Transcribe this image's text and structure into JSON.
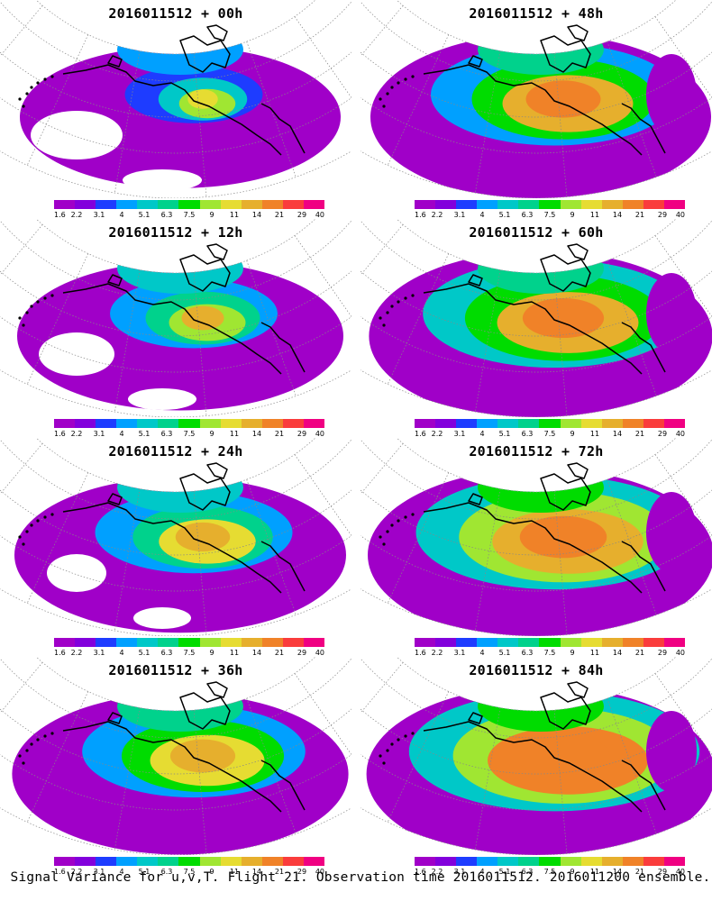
{
  "panels": [
    {
      "title": "2016011512 + 00h",
      "lead_hours": 0,
      "intensity": 0.15
    },
    {
      "title": "2016011512 + 48h",
      "lead_hours": 48,
      "intensity": 0.7
    },
    {
      "title": "2016011512 + 12h",
      "lead_hours": 12,
      "intensity": 0.3
    },
    {
      "title": "2016011512 + 60h",
      "lead_hours": 60,
      "intensity": 0.78
    },
    {
      "title": "2016011512 + 24h",
      "lead_hours": 24,
      "intensity": 0.45
    },
    {
      "title": "2016011512 + 72h",
      "lead_hours": 72,
      "intensity": 0.85
    },
    {
      "title": "2016011512 + 36h",
      "lead_hours": 36,
      "intensity": 0.58
    },
    {
      "title": "2016011512 + 84h",
      "lead_hours": 84,
      "intensity": 0.92
    }
  ],
  "colorbar": {
    "labels": [
      "1.6",
      "2.2",
      "3.1",
      "4",
      "5.1",
      "6.3",
      "7.5",
      "9",
      "11",
      "14",
      "21",
      "29",
      "40"
    ],
    "colors": [
      "#a000c8",
      "#8200dc",
      "#1e3cff",
      "#00a0ff",
      "#00c8c8",
      "#00d28c",
      "#00dc00",
      "#a0e632",
      "#e6dc32",
      "#e6af2d",
      "#f08228",
      "#fa3c3c",
      "#f00082"
    ]
  },
  "footer": "Signal Variance for u,v,T. Flight 21. Observation time 2016011512. 2016011200 ensemble."
}
